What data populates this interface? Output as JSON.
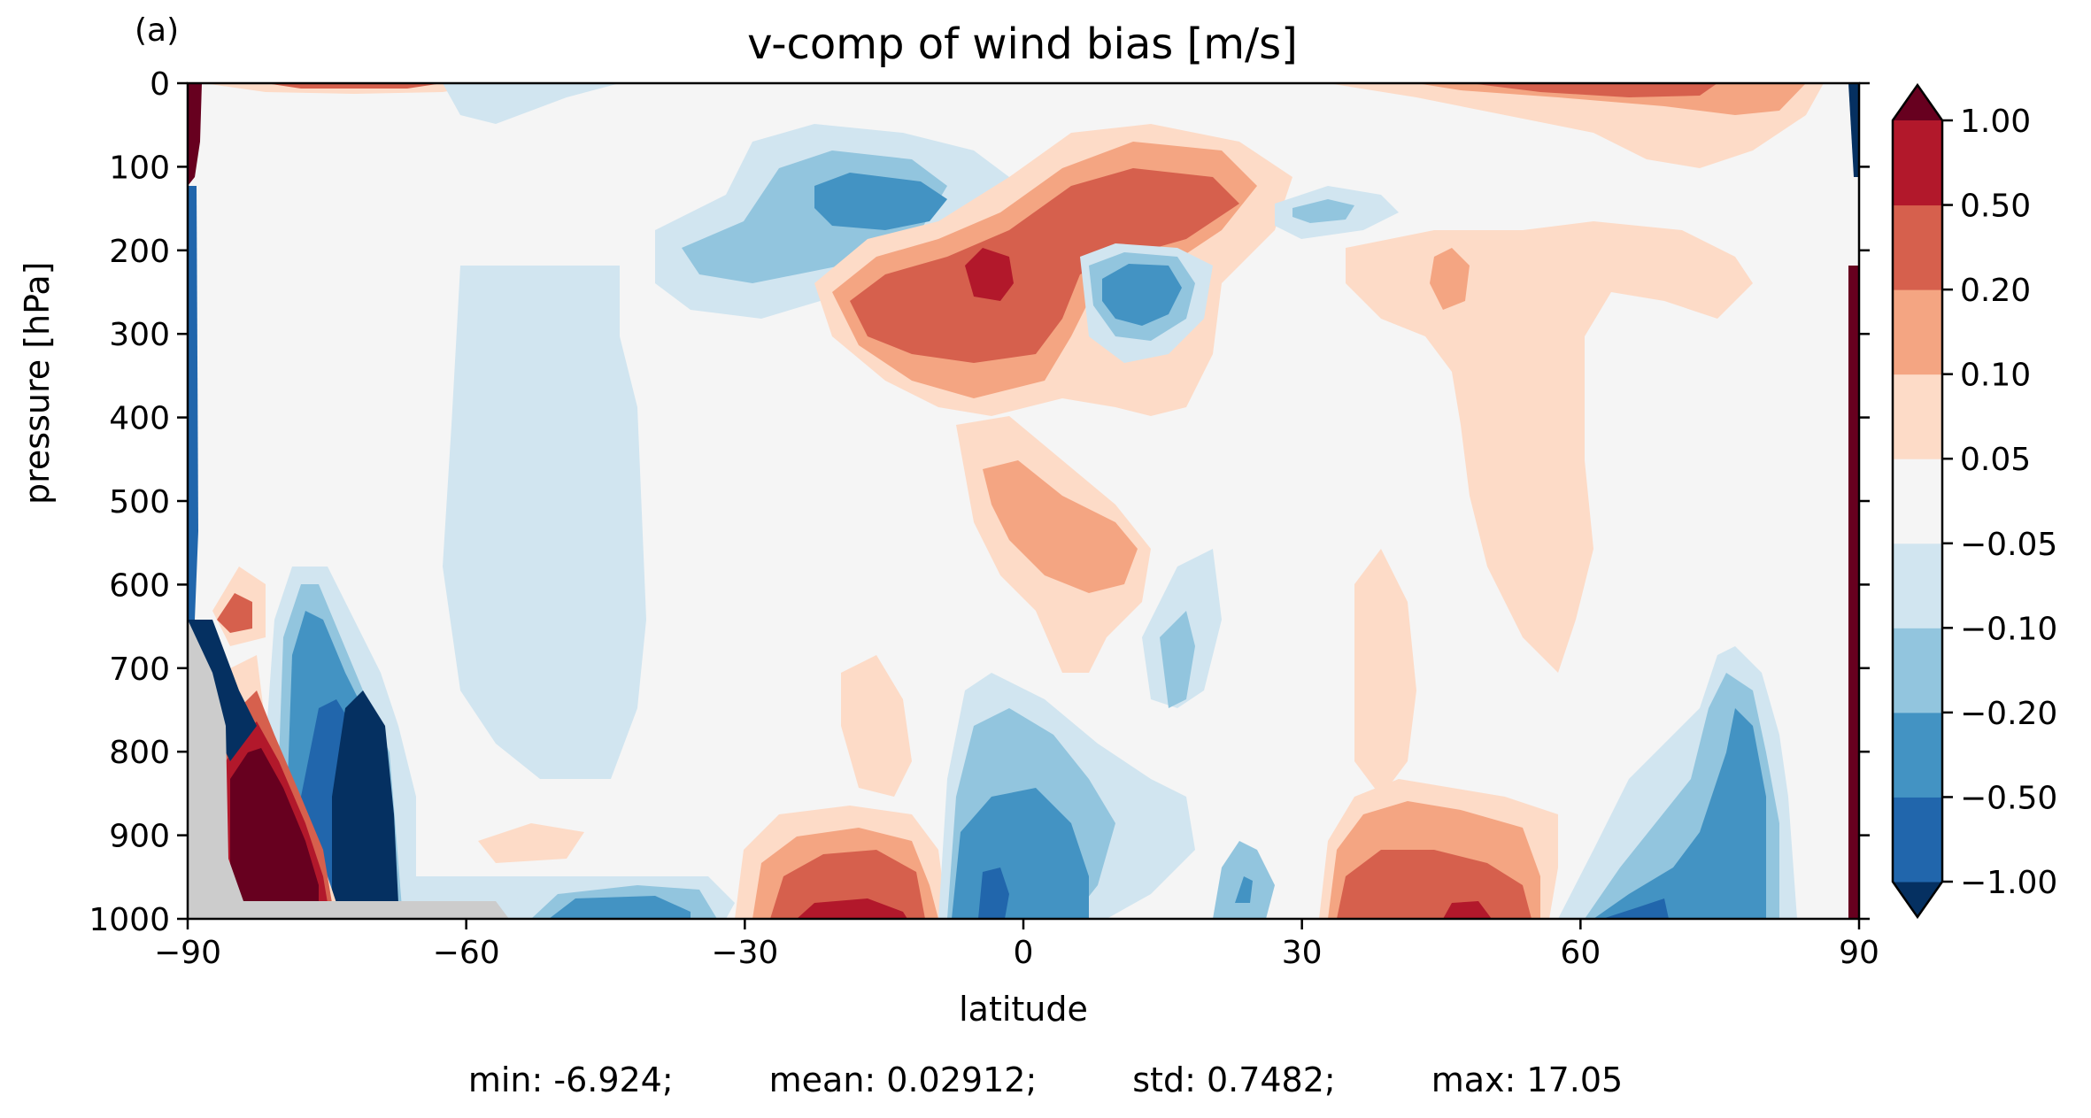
{
  "panel_label": "(a)",
  "chart_data": {
    "type": "contour",
    "title": "v-comp of wind bias [m/s]",
    "xlabel": "latitude",
    "ylabel": "pressure [hPa]",
    "xlim": [
      -90,
      90
    ],
    "ylim": [
      1000,
      0
    ],
    "x_ticks": [
      -90,
      -60,
      -30,
      0,
      30,
      60,
      90
    ],
    "x_tick_labels": [
      "−90",
      "−60",
      "−30",
      "0",
      "30",
      "60",
      "90"
    ],
    "y_ticks": [
      0,
      100,
      200,
      300,
      400,
      500,
      600,
      700,
      800,
      900,
      1000
    ],
    "y_tick_labels": [
      "0",
      "100",
      "200",
      "300",
      "400",
      "500",
      "600",
      "700",
      "800",
      "900",
      "1000"
    ],
    "colorbar": {
      "levels": [
        -1.0,
        -0.5,
        -0.2,
        -0.1,
        -0.05,
        0.05,
        0.1,
        0.2,
        0.5,
        1.0
      ],
      "tick_labels": [
        "−1.00",
        "−0.50",
        "−0.20",
        "−0.10",
        "−0.05",
        "0.05",
        "0.10",
        "0.20",
        "0.50",
        "1.00"
      ],
      "colors": [
        "#053061",
        "#2166ac",
        "#4393c3",
        "#92c5de",
        "#d1e5f0",
        "#f5f5f5",
        "#fddbc7",
        "#f4a582",
        "#d6604d",
        "#b2182b",
        "#67001f"
      ],
      "extend": "both"
    },
    "masked_color": "#cccccc",
    "features": [
      {
        "name": "equatorial-upper-positive",
        "lat": [
          -20,
          25
        ],
        "p": [
          100,
          400
        ],
        "peak": 1.0
      },
      {
        "name": "north-subtropical-upper-negative",
        "lat": [
          5,
          20
        ],
        "p": [
          200,
          320
        ],
        "peak": -0.5
      },
      {
        "name": "south-subtropical-upper-negative",
        "lat": [
          -25,
          -5
        ],
        "p": [
          100,
          200
        ],
        "peak": -0.5
      },
      {
        "name": "tropical-mid-positive",
        "lat": [
          -5,
          12
        ],
        "p": [
          450,
          650
        ],
        "peak": 0.2
      },
      {
        "name": "antarctic-low-level-positive",
        "lat": [
          -86,
          -77
        ],
        "p": [
          750,
          980
        ],
        "peak": 1.0
      },
      {
        "name": "antarctic-low-level-negative",
        "lat": [
          -75,
          -67
        ],
        "p": [
          700,
          980
        ],
        "peak": -1.0
      },
      {
        "name": "south-tropical-surface-positive",
        "lat": [
          -30,
          -8
        ],
        "p": [
          880,
          1000
        ],
        "peak": 1.0
      },
      {
        "name": "equatorial-surface-negative",
        "lat": [
          -8,
          10
        ],
        "p": [
          800,
          1000
        ],
        "peak": -1.0
      },
      {
        "name": "north-midlat-surface-positive",
        "lat": [
          32,
          57
        ],
        "p": [
          850,
          1000
        ],
        "peak": 1.0
      },
      {
        "name": "north-polar-surface-negative",
        "lat": [
          61,
          82
        ],
        "p": [
          700,
          1000
        ],
        "peak": -0.5
      },
      {
        "name": "north-upper-positive",
        "lat": [
          45,
          78
        ],
        "p": [
          0,
          60
        ],
        "peak": 0.5
      }
    ]
  },
  "stats": {
    "min": "min: -6.924;",
    "mean": "mean: 0.02912;",
    "std": "std: 0.7482;",
    "max": "max: 17.05"
  }
}
